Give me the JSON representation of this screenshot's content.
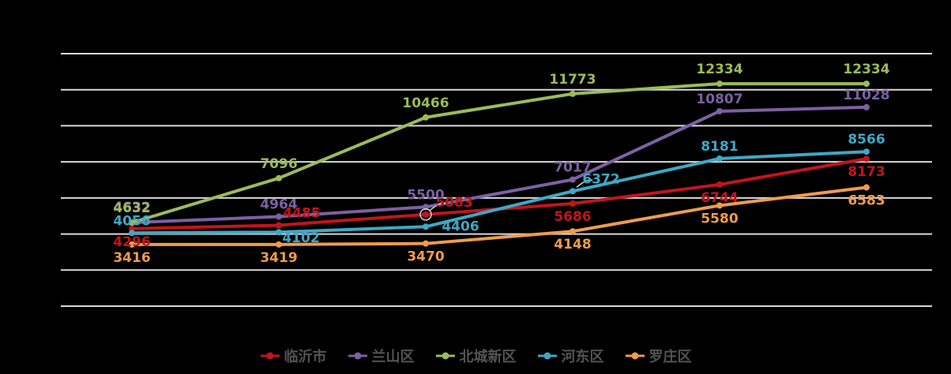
{
  "chart_data": {
    "type": "line",
    "title": "",
    "xlabel": "",
    "ylabel": "",
    "ylim": [
      0,
      14000
    ],
    "gridline_step": 2000,
    "gridline_count": 8,
    "grid": true,
    "background": "#000000",
    "gridline_color": "#D9D9D9",
    "legend_position": "bottom",
    "legend_text_color": "#545454",
    "point_count": 6,
    "series": [
      {
        "name": "临沂市",
        "color": "#C2151B",
        "values": [
          4296,
          4485,
          5083,
          5686,
          6744,
          8173
        ],
        "label_pos": [
          "bottom",
          "top",
          "top",
          "bottom",
          "bottom",
          "bottom"
        ],
        "label_dx": [
          0,
          29,
          36,
          0,
          0,
          0
        ],
        "label_dy": [
          0,
          0,
          0,
          0,
          0,
          0
        ]
      },
      {
        "name": "兰山区",
        "color": "#7D60A3",
        "values": [
          4632,
          4964,
          5500,
          7017,
          10807,
          11028
        ],
        "label_pos": [
          "top",
          "top",
          "top",
          "top",
          "top",
          "top"
        ],
        "label_dx": [
          0,
          0,
          0,
          0,
          0,
          0
        ],
        "label_dy": [
          -4,
          0,
          0,
          0,
          0,
          0
        ]
      },
      {
        "name": "北城新区",
        "color": "#9BBB59",
        "values": [
          4632,
          7096,
          10466,
          11773,
          12334,
          12334
        ],
        "label_pos": [
          "top",
          "top",
          "top",
          "top",
          "top",
          "top"
        ],
        "label_dx": [
          0,
          0,
          0,
          0,
          0,
          0
        ],
        "label_dy": [
          -3,
          -3,
          -3,
          -3,
          -3,
          -3
        ]
      },
      {
        "name": "河东区",
        "color": "#3FA8C6",
        "values": [
          4056,
          4102,
          4406,
          6372,
          8181,
          8566
        ],
        "label_pos": [
          "top",
          "bottom",
          "bottom",
          "top",
          "top",
          "top"
        ],
        "label_dx": [
          0,
          28,
          44,
          36,
          0,
          0
        ],
        "label_dy": [
          0,
          -9,
          -17,
          0,
          0,
          0
        ]
      },
      {
        "name": "罗庄区",
        "color": "#EE9C4D",
        "values": [
          3416,
          3419,
          3470,
          4148,
          5580,
          6583
        ],
        "label_pos": [
          "bottom",
          "bottom",
          "bottom",
          "bottom",
          "bottom",
          "bottom"
        ],
        "label_dx": [
          0,
          0,
          0,
          0,
          0,
          0
        ],
        "label_dy": [
          0,
          0,
          0,
          0,
          0,
          0
        ]
      }
    ],
    "legend": [
      "临沂市",
      "兰山区",
      "北城新区",
      "河东区",
      "罗庄区"
    ],
    "annotations": [
      {
        "type": "ring",
        "series": 0,
        "point": 2,
        "color": "#CCCCCC"
      },
      {
        "type": "leader",
        "series": 0,
        "point": 2,
        "color": "#CCCCCC"
      },
      {
        "type": "leader",
        "series": 3,
        "point": 3,
        "color": "#CCCCCC"
      }
    ]
  }
}
